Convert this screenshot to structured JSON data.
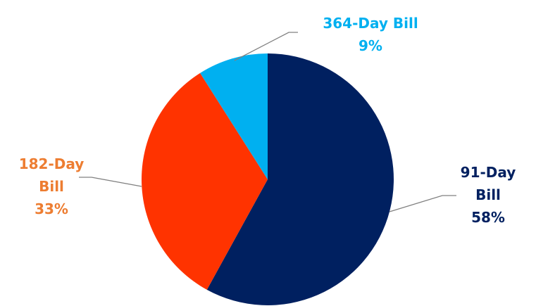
{
  "chart_data": {
    "type": "pie",
    "title": "",
    "legend": "none",
    "slices": [
      {
        "category_lines": [
          "91-Day",
          "Bill"
        ],
        "value": 58,
        "percent_label": "58%",
        "color": "#002060",
        "label_color": "#002060"
      },
      {
        "category_lines": [
          "182-Day",
          "Bill"
        ],
        "value": 33,
        "percent_label": "33%",
        "color": "#FF3300",
        "label_color": "#ED7D31"
      },
      {
        "category_lines": [
          "364-Day Bill"
        ],
        "value": 9,
        "percent_label": "9%",
        "color": "#00B0F0",
        "label_color": "#00B0F0"
      }
    ],
    "leader_line_color": "#808080"
  }
}
